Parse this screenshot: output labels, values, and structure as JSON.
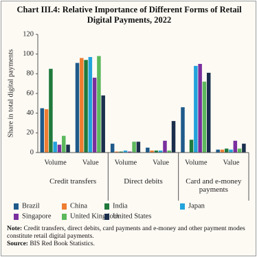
{
  "chart_data": {
    "type": "bar",
    "title": "Chart III.4: Relative Importance of Different Forms of Retail Digital Payments, 2022",
    "y_label": "Share in total digital payments",
    "categories": [
      "Volume",
      "Value",
      "Volume",
      "Value",
      "Volume",
      "Value"
    ],
    "groups": [
      "Credit transfers",
      "Direct debits",
      "Card and e-money payments"
    ],
    "series": [
      {
        "name": "Brazil",
        "color": "#1f5a8a",
        "values": [
          45,
          91,
          9,
          5,
          46,
          3
        ]
      },
      {
        "name": "China",
        "color": "#ee7d31",
        "values": [
          44,
          96,
          1,
          2,
          0,
          3
        ]
      },
      {
        "name": "India",
        "color": "#1f7a3c",
        "values": [
          85,
          94,
          1,
          2,
          13,
          4
        ]
      },
      {
        "name": "Japan",
        "color": "#22a3dc",
        "values": [
          11,
          97,
          2,
          2,
          88,
          3
        ]
      },
      {
        "name": "Singapore",
        "color": "#7a2f9e",
        "values": [
          8,
          76,
          1,
          12,
          90,
          12
        ]
      },
      {
        "name": "United Kingdom",
        "color": "#5cb85c",
        "values": [
          17,
          98,
          11,
          2,
          72,
          4
        ]
      },
      {
        "name": "United States",
        "color": "#1b2f4d",
        "values": [
          8,
          58,
          11,
          32,
          81,
          9
        ]
      }
    ],
    "ylim": [
      0,
      120
    ],
    "yticks": [
      0,
      20,
      40,
      60,
      80,
      100,
      120
    ],
    "grid": false,
    "legend": "bottom",
    "note_label": "Note:",
    "note": "Credit transfers, direct debits, card payments and e-money and other payment modes constitute retail digital payments.",
    "source_label": "Source:",
    "source": "BIS Red Book Statistics."
  }
}
